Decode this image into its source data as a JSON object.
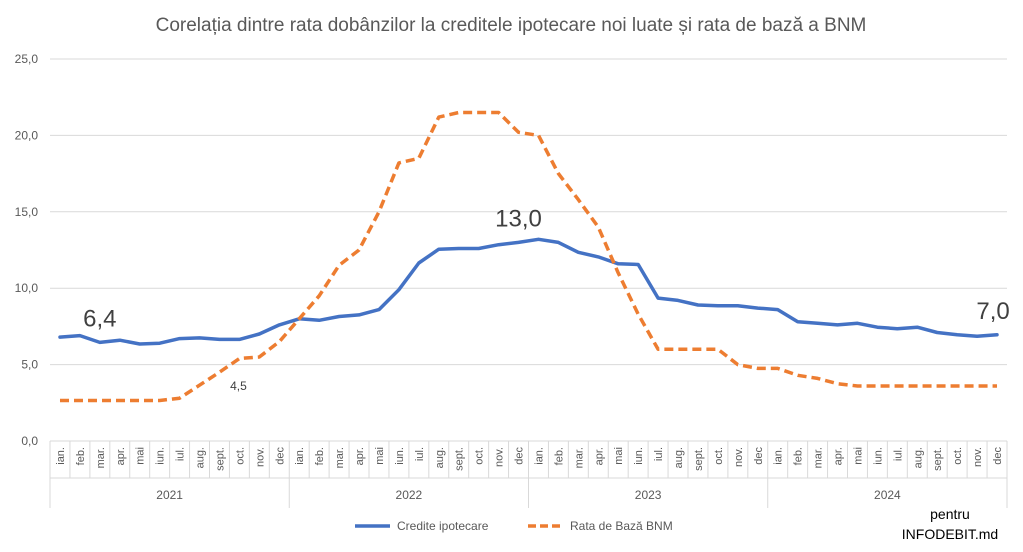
{
  "chart_data": {
    "type": "line",
    "title": "Corelația dintre rata dobânzilor la creditele ipotecare noi luate și rata de bază a BNM",
    "ylim": [
      0,
      25
    ],
    "yticks": [
      "0,0",
      "5,0",
      "10,0",
      "15,0",
      "20,0",
      "25,0"
    ],
    "ytick_values": [
      0,
      5,
      10,
      15,
      20,
      25
    ],
    "grid": true,
    "months": [
      "ian.",
      "feb.",
      "mar.",
      "apr.",
      "mai",
      "iun.",
      "iul.",
      "aug.",
      "sept.",
      "oct.",
      "nov.",
      "dec"
    ],
    "years": [
      "2021",
      "2022",
      "2023",
      "2024"
    ],
    "series": [
      {
        "name": "Credite ipotecare",
        "color": "#4472C4",
        "style": "solid",
        "values": [
          6.8,
          6.9,
          6.45,
          6.6,
          6.35,
          6.4,
          6.7,
          6.75,
          6.65,
          6.65,
          7.0,
          7.6,
          8.0,
          7.9,
          8.15,
          8.25,
          8.6,
          9.9,
          11.65,
          12.55,
          12.6,
          12.6,
          12.85,
          13.0,
          13.2,
          13.0,
          12.35,
          12.05,
          11.6,
          11.55,
          9.35,
          9.2,
          8.9,
          8.85,
          8.85,
          8.7,
          8.6,
          7.8,
          7.7,
          7.6,
          7.7,
          7.45,
          7.35,
          7.45,
          7.1,
          6.95,
          6.85,
          6.95
        ]
      },
      {
        "name": "Rata de Bază BNM",
        "color": "#ED7D31",
        "style": "dashed",
        "values": [
          2.65,
          2.65,
          2.65,
          2.65,
          2.65,
          2.65,
          2.8,
          3.65,
          4.5,
          5.4,
          5.5,
          6.5,
          8.0,
          9.5,
          11.5,
          12.5,
          15.0,
          18.2,
          18.5,
          21.2,
          21.5,
          21.5,
          21.5,
          20.2,
          20.0,
          17.5,
          15.8,
          14.0,
          11.0,
          8.3,
          6.0,
          6.0,
          6.0,
          6.0,
          5.0,
          4.75,
          4.75,
          4.3,
          4.1,
          3.75,
          3.6,
          3.6,
          3.6,
          3.6,
          3.6,
          3.6,
          3.6,
          3.6
        ]
      }
    ],
    "annotations": [
      {
        "text": "6,4",
        "series": 0,
        "index": 2,
        "size": "large"
      },
      {
        "text": "13,0",
        "series": 0,
        "index": 23,
        "size": "large"
      },
      {
        "text": "7,0",
        "series": 0,
        "index": 47,
        "size": "large"
      },
      {
        "text": "4,5",
        "series": 1,
        "index": 8,
        "size": "small"
      }
    ],
    "legend": "bottom"
  },
  "credit": {
    "line1": "pentru",
    "line2": "INFODEBIT.md"
  }
}
